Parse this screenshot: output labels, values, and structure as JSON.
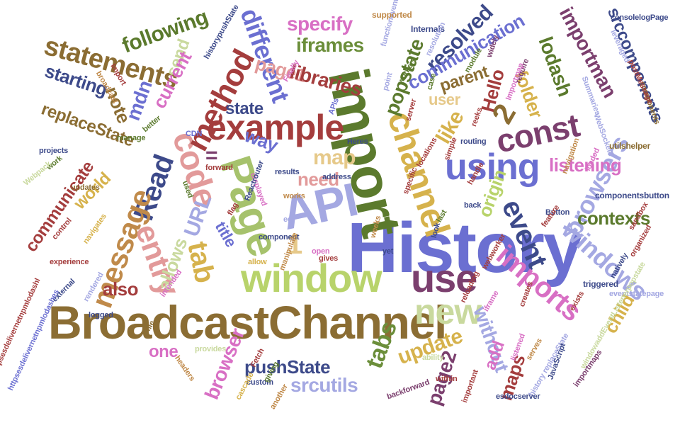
{
  "words": [
    {
      "text": "History",
      "color": "#6B6FD1"
    },
    {
      "text": "API",
      "color": "#A4A8E2"
    },
    {
      "text": "BroadcastChannel",
      "color": "#8B6D33"
    },
    {
      "text": "import",
      "color": "#5B7A2D"
    },
    {
      "text": "Page",
      "color": "#A6C26C"
    },
    {
      "text": "window",
      "color": "#B8D36B"
    },
    {
      "text": "use",
      "color": "#7B3F6E"
    },
    {
      "text": "new",
      "color": "#C9D99E"
    },
    {
      "text": "channel",
      "color": "#D6B24C"
    },
    {
      "text": "using",
      "color": "#6B6FD1"
    },
    {
      "text": "example",
      "color": "#A43D3D"
    },
    {
      "text": "const",
      "color": "#7B3F6E"
    },
    {
      "text": "code",
      "color": "#E29A9A"
    },
    {
      "text": "method",
      "color": "#A43D3D"
    },
    {
      "text": "Read",
      "color": "#3D4A8A"
    },
    {
      "text": "message",
      "color": "#C08A4A"
    },
    {
      "text": "entry",
      "color": "#E29A9A"
    },
    {
      "text": "tab",
      "color": "#D6B24C"
    },
    {
      "text": "event",
      "color": "#3D4A8A"
    },
    {
      "text": "imports",
      "color": "#D86FC4"
    },
    {
      "text": "windows",
      "color": "#A4A8E2"
    },
    {
      "text": "browsers",
      "color": "#A4A8E2"
    },
    {
      "text": "statements",
      "color": "#8B6D33"
    },
    {
      "text": "different",
      "color": "#6B6FD1"
    },
    {
      "text": "page1",
      "color": "#E29A9A"
    },
    {
      "text": "specify",
      "color": "#D86FC4"
    },
    {
      "text": "following",
      "color": "#5B7A2D"
    },
    {
      "text": "iframes",
      "color": "#6B8E3A"
    },
    {
      "text": "resolved",
      "color": "#3D4A8A"
    },
    {
      "text": "communication",
      "color": "#6B6FD1"
    },
    {
      "text": "popstate",
      "color": "#5B7A2D"
    },
    {
      "text": "libraries",
      "color": "#A43D3D"
    },
    {
      "text": "lodash",
      "color": "#5B7A2D"
    },
    {
      "text": "importman",
      "color": "#7B3F6E"
    },
    {
      "text": "srccomponents",
      "color": "#3D4A8A"
    },
    {
      "text": "folder",
      "color": "#D6B24C"
    },
    {
      "text": "parent",
      "color": "#8B6D33"
    },
    {
      "text": "Hello",
      "color": "#A43D3D"
    },
    {
      "text": "user",
      "color": "#E6C98A"
    },
    {
      "text": "like",
      "color": "#D6B24C"
    },
    {
      "text": "2",
      "color": "#8B6D33"
    },
    {
      "text": "map",
      "color": "#E6C98A"
    },
    {
      "text": "way",
      "color": "#6B6FD1"
    },
    {
      "text": "state",
      "color": "#3D4A8A"
    },
    {
      "text": "starting",
      "color": "#3D4A8A"
    },
    {
      "text": "mdn",
      "color": "#6B6FD1"
    },
    {
      "text": "send",
      "color": "#C9D99E"
    },
    {
      "text": "current",
      "color": "#D86FC4"
    },
    {
      "text": "note",
      "color": "#8B6D33"
    },
    {
      "text": "replaceState",
      "color": "#8B6D33"
    },
    {
      "text": "communicate",
      "color": "#A43D3D"
    },
    {
      "text": "world",
      "color": "#D6B24C"
    },
    {
      "text": "allows",
      "color": "#C9D99E"
    },
    {
      "text": "URL",
      "color": "#A4A8E2"
    },
    {
      "text": "need",
      "color": "#E29A9A"
    },
    {
      "text": "origin",
      "color": "#B8D36B"
    },
    {
      "text": "listening",
      "color": "#D86FC4"
    },
    {
      "text": "contexts",
      "color": "#5B7A2D"
    },
    {
      "text": "title",
      "color": "#6B6FD1"
    },
    {
      "text": "1",
      "color": "#E6C98A"
    },
    {
      "text": "also",
      "color": "#A43D3D"
    },
    {
      "text": "one",
      "color": "#D86FC4"
    },
    {
      "text": "browser",
      "color": "#D86FC4"
    },
    {
      "text": "pushState",
      "color": "#3D4A8A"
    },
    {
      "text": "srcutils",
      "color": "#A4A8E2"
    },
    {
      "text": "tabs",
      "color": "#6B8E3A"
    },
    {
      "text": "update",
      "color": "#D6B24C"
    },
    {
      "text": "page2",
      "color": "#7B3F6E"
    },
    {
      "text": "without",
      "color": "#A4A8E2"
    },
    {
      "text": "add",
      "color": "#D86FC4"
    },
    {
      "text": "maps",
      "color": "#A43D3D"
    },
    {
      "text": "child",
      "color": "#D6B24C"
    },
    {
      "text": "=",
      "color": "#7B3F6E"
    },
    {
      "text": "historypushState",
      "color": "#3D4A8A"
    },
    {
      "text": "functioneventt",
      "color": "#A4A8E2"
    },
    {
      "text": "supported",
      "color": "#C08A4A"
    },
    {
      "text": "Internals",
      "color": "#3D4A8A"
    },
    {
      "text": "resolution",
      "color": "#A4A8E2"
    },
    {
      "text": "widely",
      "color": "#7B3F6E"
    },
    {
      "text": "consolelogPage",
      "color": "#3D4A8A"
    },
    {
      "text": "components",
      "color": "#8B6D33"
    },
    {
      "text": "postMessage",
      "color": "#A43D3D"
    },
    {
      "text": "WebSockets",
      "color": "#A4A8E2"
    },
    {
      "text": "utilshelper",
      "color": "#8B6D33"
    },
    {
      "text": "componentsbutton",
      "color": "#3D4A8A"
    },
    {
      "text": "triggered",
      "color": "#3D4A8A"
    },
    {
      "text": "eventstatepage",
      "color": "#A4A8E2"
    },
    {
      "text": "history replaceState",
      "color": "#A4A8E2"
    },
    {
      "text": "JavaScript",
      "color": "#3D4A8A"
    },
    {
      "text": "importmaps",
      "color": "#7B3F6E"
    },
    {
      "text": "windowaddEventListenerpopstate",
      "color": "#C9D99E"
    },
    {
      "text": "esdocserver",
      "color": "#3D4A8A"
    },
    {
      "text": "backforward",
      "color": "#7B3F6E"
    },
    {
      "text": "custom",
      "color": "#3D4A8A"
    },
    {
      "text": "another",
      "color": "#C08A4A"
    },
    {
      "text": "Fetch",
      "color": "#A43D3D"
    },
    {
      "text": "headers",
      "color": "#C08A4A"
    },
    {
      "text": "provides",
      "color": "#C9D99E"
    },
    {
      "text": "experience",
      "color": "#A43D3D"
    },
    {
      "text": "external",
      "color": "#3D4A8A"
    },
    {
      "text": "Button",
      "color": "#3D4A8A"
    },
    {
      "text": "projects",
      "color": "#3D4A8A"
    },
    {
      "text": "broadcast",
      "color": "#C08A4A"
    },
    {
      "text": "manage",
      "color": "#5B7A2D"
    },
    {
      "text": "better",
      "color": "#5B7A2D"
    },
    {
      "text": "CDN",
      "color": "#6B6FD1"
    },
    {
      "text": "forward",
      "color": "#A43D3D"
    },
    {
      "text": "results",
      "color": "#3D4A8A"
    },
    {
      "text": "Finally",
      "color": "#D86FC4"
    },
    {
      "text": "point",
      "color": "#A4A8E2"
    },
    {
      "text": "workers",
      "color": "#5B7A2D"
    },
    {
      "text": "case",
      "color": "#5B7A2D"
    },
    {
      "text": "server",
      "color": "#A43D3D"
    },
    {
      "text": "locations",
      "color": "#A43D3D"
    },
    {
      "text": "Heres",
      "color": "#3D4A8A"
    },
    {
      "text": "address",
      "color": "#3D4A8A"
    },
    {
      "text": "works",
      "color": "#C08A4A"
    },
    {
      "text": "updates",
      "color": "#8B6D33"
    },
    {
      "text": "navigates",
      "color": "#D6B24C"
    },
    {
      "text": "used",
      "color": "#5B7A2D"
    },
    {
      "text": "displayed",
      "color": "#D86FC4"
    },
    {
      "text": "flag",
      "color": "#A43D3D"
    },
    {
      "text": "component",
      "color": "#3D4A8A"
    },
    {
      "text": "weeks",
      "color": "#C08A4A"
    },
    {
      "text": "allow",
      "color": "#D6B24C"
    },
    {
      "text": "manipulate",
      "color": "#C08A4A"
    },
    {
      "text": "open",
      "color": "#D86FC4"
    },
    {
      "text": "gives",
      "color": "#A43D3D"
    },
    {
      "text": "reloading",
      "color": "#A43D3D"
    },
    {
      "text": "iframe",
      "color": "#D86FC4"
    },
    {
      "text": "logged",
      "color": "#3D4A8A"
    },
    {
      "text": "file",
      "color": "#8B6D33"
    },
    {
      "text": "intended",
      "color": "#D86FC4"
    },
    {
      "text": "listened",
      "color": "#D86FC4"
    },
    {
      "text": "serves",
      "color": "#C08A4A"
    },
    {
      "text": "ability",
      "color": "#C9D99E"
    },
    {
      "text": "important",
      "color": "#A43D3D"
    },
    {
      "text": "within",
      "color": "#A43D3D"
    },
    {
      "text": "natively",
      "color": "#3D4A8A"
    },
    {
      "text": "organized",
      "color": "#A43D3D"
    },
    {
      "text": "feature",
      "color": "#A43D3D"
    },
    {
      "text": "navigation",
      "color": "#C08A4A"
    },
    {
      "text": "loaded",
      "color": "#D86FC4"
    },
    {
      "text": "Summaries",
      "color": "#A4A8E2"
    },
    {
      "text": "routing",
      "color": "#3D4A8A"
    },
    {
      "text": "handle",
      "color": "#A43D3D"
    },
    {
      "text": "back",
      "color": "#3D4A8A"
    },
    {
      "text": "yet",
      "color": "#3D4A8A"
    },
    {
      "text": "look",
      "color": "#3D4A8A"
    },
    {
      "text": "last",
      "color": "#5B7A2D"
    },
    {
      "text": "specific",
      "color": "#A43D3D"
    },
    {
      "text": "eg",
      "color": "#A4A8E2"
    },
    {
      "text": "control",
      "color": "#A43D3D"
    },
    {
      "text": "work",
      "color": "#5B7A2D"
    },
    {
      "text": "Webpack",
      "color": "#C9D99E"
    },
    {
      "text": "module",
      "color": "#5B7A2D"
    },
    {
      "text": "reeks",
      "color": "#A43D3D"
    },
    {
      "text": "require",
      "color": "#7B3F6E"
    },
    {
      "text": "leveraged",
      "color": "#A4A8E2"
    },
    {
      "text": "APIs",
      "color": "#6B6FD1"
    },
    {
      "text": "Import",
      "color": "#A43D3D"
    },
    {
      "text": "Reactrouter",
      "color": "#3D4A8A"
    },
    {
      "text": "rendered",
      "color": "#A4A8E2"
    },
    {
      "text": "webworker",
      "color": "#A43D3D"
    },
    {
      "text": "creates",
      "color": "#A43D3D"
    },
    {
      "text": "Importmap",
      "color": "#D86FC4"
    },
    {
      "text": "httpsesdelivernetnpmlodashl",
      "color": "#A43D3D"
    },
    {
      "text": "httpsesdelivernetnpmlodashes",
      "color": "#6B6FD1"
    },
    {
      "text": "exists",
      "color": "#A43D3D"
    },
    {
      "text": "sandbox",
      "color": "#A43D3D"
    },
    {
      "text": "simple",
      "color": "#A43D3D"
    },
    {
      "text": "cascade",
      "color": "#D6B24C"
    },
    {
      "text": "giving",
      "color": "#5B7A2D"
    }
  ]
}
